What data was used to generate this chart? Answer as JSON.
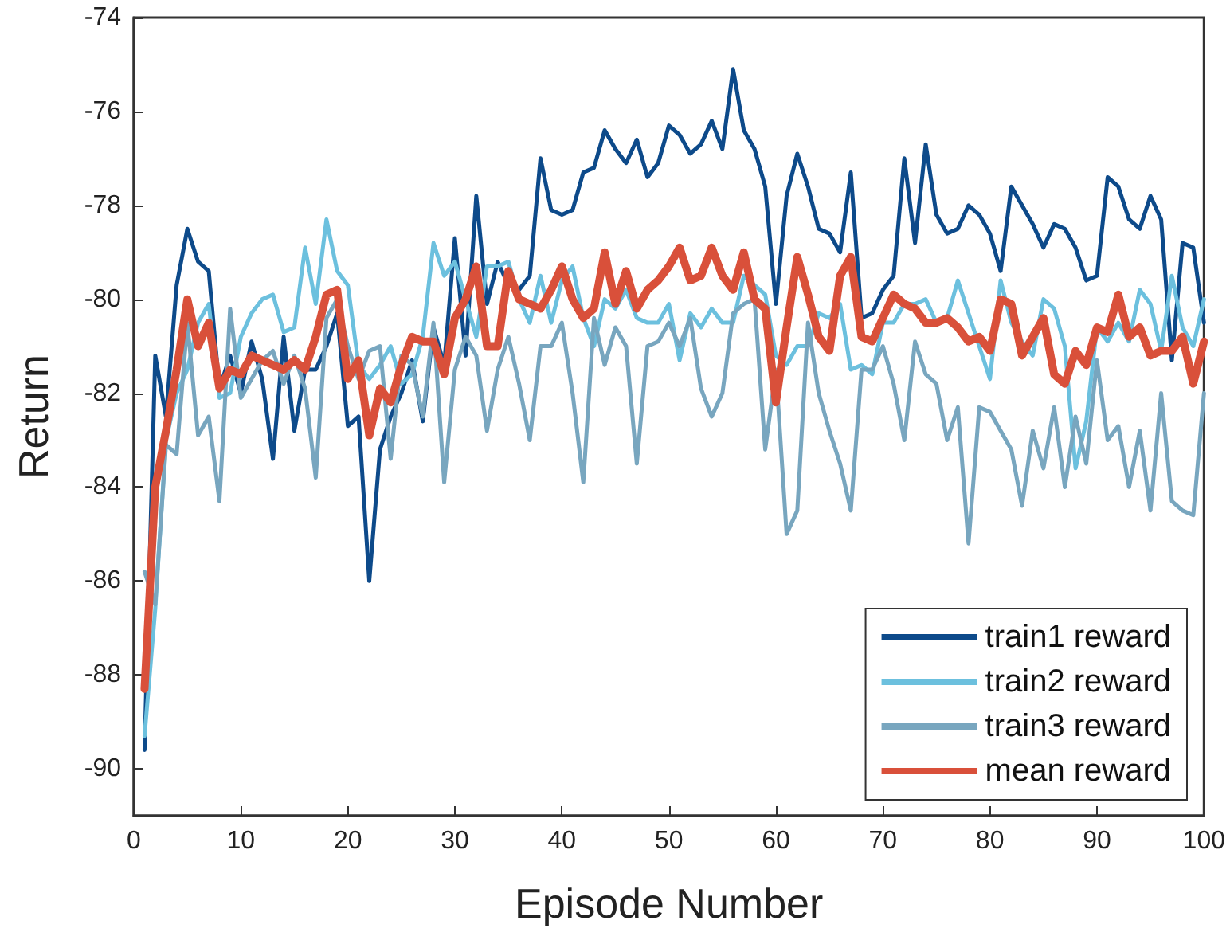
{
  "chart_data": {
    "type": "line",
    "xlabel": "Episode Number",
    "ylabel": "Return",
    "x": [
      1,
      2,
      3,
      4,
      5,
      6,
      7,
      8,
      9,
      10,
      11,
      12,
      13,
      14,
      15,
      16,
      17,
      18,
      19,
      20,
      21,
      22,
      23,
      24,
      25,
      26,
      27,
      28,
      29,
      30,
      31,
      32,
      33,
      34,
      35,
      36,
      37,
      38,
      39,
      40,
      41,
      42,
      43,
      44,
      45,
      46,
      47,
      48,
      49,
      50,
      51,
      52,
      53,
      54,
      55,
      56,
      57,
      58,
      59,
      60,
      61,
      62,
      63,
      64,
      65,
      66,
      67,
      68,
      69,
      70,
      71,
      72,
      73,
      74,
      75,
      76,
      77,
      78,
      79,
      80,
      81,
      82,
      83,
      84,
      85,
      86,
      87,
      88,
      89,
      90,
      91,
      92,
      93,
      94,
      95,
      96,
      97,
      98,
      99,
      100
    ],
    "series": [
      {
        "name": "train1 reward",
        "color": "#0d4a8a",
        "values": [
          -89.6,
          -81.2,
          -82.5,
          -79.7,
          -78.5,
          -79.2,
          -79.4,
          -81.9,
          -81.2,
          -82.0,
          -80.9,
          -81.7,
          -83.4,
          -80.8,
          -82.8,
          -81.5,
          -81.5,
          -81.0,
          -80.3,
          -82.7,
          -82.5,
          -86.0,
          -83.2,
          -82.5,
          -82.0,
          -81.3,
          -82.6,
          -80.6,
          -81.4,
          -78.7,
          -81.2,
          -77.8,
          -80.1,
          -79.2,
          -79.7,
          -79.8,
          -79.5,
          -77.0,
          -78.1,
          -78.2,
          -78.1,
          -77.3,
          -77.2,
          -76.4,
          -76.8,
          -77.1,
          -76.6,
          -77.4,
          -77.1,
          -76.3,
          -76.5,
          -76.9,
          -76.7,
          -76.2,
          -76.8,
          -75.1,
          -76.4,
          -76.8,
          -77.6,
          -80.1,
          -77.8,
          -76.9,
          -77.6,
          -78.5,
          -78.6,
          -79.0,
          -77.3,
          -80.4,
          -80.3,
          -79.8,
          -79.5,
          -77.0,
          -78.8,
          -76.7,
          -78.2,
          -78.6,
          -78.5,
          -78.0,
          -78.2,
          -78.6,
          -79.4,
          -77.6,
          -78.0,
          -78.4,
          -78.9,
          -78.4,
          -78.5,
          -78.9,
          -79.6,
          -79.5,
          -77.4,
          -77.6,
          -78.3,
          -78.5,
          -77.8,
          -78.3,
          -81.3,
          -78.8,
          -78.9,
          -80.5
        ]
      },
      {
        "name": "train2 reward",
        "color": "#6cc0de",
        "values": [
          -89.3,
          -86.6,
          -83.0,
          -82.0,
          -81.5,
          -80.5,
          -80.1,
          -82.1,
          -82.0,
          -80.8,
          -80.3,
          -80.0,
          -79.9,
          -80.7,
          -80.6,
          -78.9,
          -80.1,
          -78.3,
          -79.4,
          -79.7,
          -81.4,
          -81.7,
          -81.4,
          -81.0,
          -81.8,
          -81.6,
          -80.8,
          -78.8,
          -79.5,
          -79.2,
          -80.0,
          -80.8,
          -79.3,
          -79.3,
          -79.2,
          -80.0,
          -80.5,
          -79.5,
          -80.5,
          -79.6,
          -79.3,
          -80.4,
          -81.0,
          -80.0,
          -80.2,
          -79.8,
          -80.4,
          -80.5,
          -80.5,
          -80.1,
          -81.3,
          -80.3,
          -80.6,
          -80.2,
          -80.5,
          -80.5,
          -79.5,
          -79.7,
          -79.9,
          -81.2,
          -81.4,
          -81.0,
          -81.0,
          -80.3,
          -80.4,
          -80.1,
          -81.5,
          -81.4,
          -81.6,
          -80.5,
          -80.5,
          -80.1,
          -80.1,
          -80.0,
          -80.5,
          -80.4,
          -79.6,
          -80.3,
          -81.0,
          -81.7,
          -79.6,
          -80.5,
          -80.9,
          -81.2,
          -80.0,
          -80.2,
          -81.0,
          -83.6,
          -82.6,
          -80.6,
          -80.9,
          -80.5,
          -80.9,
          -79.8,
          -80.1,
          -81.1,
          -79.5,
          -80.6,
          -81.0,
          -80.0
        ]
      },
      {
        "name": "train3 reward",
        "color": "#78a6bf",
        "values": [
          -85.8,
          -86.5,
          -83.1,
          -83.3,
          -80.5,
          -82.9,
          -82.5,
          -84.3,
          -80.2,
          -82.1,
          -81.7,
          -81.3,
          -81.1,
          -81.8,
          -81.2,
          -81.9,
          -83.8,
          -80.4,
          -80.0,
          -81.0,
          -81.7,
          -81.1,
          -81.0,
          -83.4,
          -81.2,
          -81.4,
          -82.5,
          -80.5,
          -83.9,
          -81.5,
          -80.8,
          -81.2,
          -82.8,
          -81.5,
          -80.8,
          -81.8,
          -83.0,
          -81.0,
          -81.0,
          -80.5,
          -82.0,
          -83.9,
          -80.4,
          -81.4,
          -80.6,
          -81.0,
          -83.5,
          -81.0,
          -80.9,
          -80.5,
          -81.0,
          -80.4,
          -81.9,
          -82.5,
          -82.0,
          -80.3,
          -80.1,
          -80.0,
          -83.2,
          -81.5,
          -85.0,
          -84.5,
          -80.5,
          -82.0,
          -82.8,
          -83.5,
          -84.5,
          -81.5,
          -81.5,
          -81.0,
          -81.8,
          -83.0,
          -80.9,
          -81.6,
          -81.8,
          -83.0,
          -82.3,
          -85.2,
          -82.3,
          -82.4,
          -82.8,
          -83.2,
          -84.4,
          -82.8,
          -83.6,
          -82.3,
          -84.0,
          -82.5,
          -83.5,
          -81.3,
          -83.0,
          -82.7,
          -84.0,
          -82.8,
          -84.5,
          -82.0,
          -84.3,
          -84.5,
          -84.6,
          -82.0
        ]
      },
      {
        "name": "mean reward",
        "color": "#d9503a",
        "values": [
          -88.3,
          -84.0,
          -82.8,
          -81.5,
          -80.0,
          -81.0,
          -80.5,
          -81.9,
          -81.5,
          -81.6,
          -81.2,
          -81.3,
          -81.4,
          -81.5,
          -81.3,
          -81.5,
          -80.8,
          -79.9,
          -79.8,
          -81.7,
          -81.3,
          -82.9,
          -81.9,
          -82.2,
          -81.4,
          -80.8,
          -80.9,
          -80.9,
          -81.6,
          -80.4,
          -80.0,
          -79.3,
          -81.0,
          -81.0,
          -79.4,
          -80.0,
          -80.1,
          -80.2,
          -79.8,
          -79.3,
          -80.0,
          -80.4,
          -80.2,
          -79.0,
          -80.1,
          -79.4,
          -80.2,
          -79.8,
          -79.6,
          -79.3,
          -78.9,
          -79.6,
          -79.5,
          -78.9,
          -79.5,
          -79.8,
          -79.0,
          -80.0,
          -80.2,
          -82.2,
          -80.6,
          -79.1,
          -79.9,
          -80.8,
          -81.1,
          -79.5,
          -79.1,
          -80.8,
          -80.9,
          -80.4,
          -79.9,
          -80.1,
          -80.2,
          -80.5,
          -80.5,
          -80.4,
          -80.6,
          -80.9,
          -80.8,
          -81.1,
          -80.0,
          -80.1,
          -81.2,
          -80.8,
          -80.4,
          -81.6,
          -81.8,
          -81.1,
          -81.4,
          -80.6,
          -80.7,
          -79.9,
          -80.8,
          -80.6,
          -81.2,
          -81.1,
          -81.1,
          -80.8,
          -81.8,
          -80.9
        ]
      }
    ],
    "xlim": [
      0,
      100
    ],
    "xticks": [
      0,
      10,
      20,
      30,
      40,
      50,
      60,
      70,
      80,
      90,
      100
    ],
    "ylim": [
      -91,
      -74
    ],
    "yticks": [
      -90,
      -88,
      -86,
      -84,
      -82,
      -80,
      -78,
      -76,
      -74
    ],
    "grid": false,
    "legend": "bottom right",
    "marker": "none",
    "line_style": "solid"
  }
}
